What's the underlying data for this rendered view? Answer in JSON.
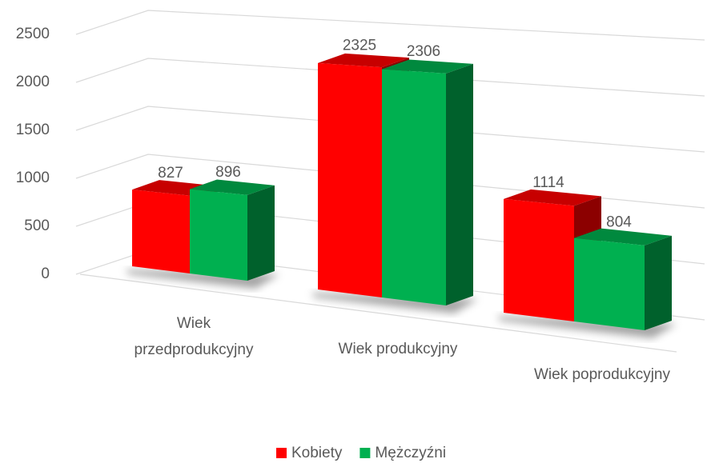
{
  "chart_data": {
    "type": "bar3d",
    "categories": [
      "Wiek przedprodukcyjny",
      "Wiek produkcyjny",
      "Wiek poprodukcyjny"
    ],
    "series": [
      {
        "name": "Kobiety",
        "color": "#ff0000",
        "values": [
          827,
          2325,
          1114
        ]
      },
      {
        "name": "Mężczyźni",
        "color": "#00b050",
        "values": [
          896,
          2306,
          804
        ]
      }
    ],
    "ylim": [
      0,
      2500
    ],
    "yticks": [
      0,
      500,
      1000,
      1500,
      2000,
      2500
    ],
    "grid": true,
    "legend": "bottom"
  }
}
